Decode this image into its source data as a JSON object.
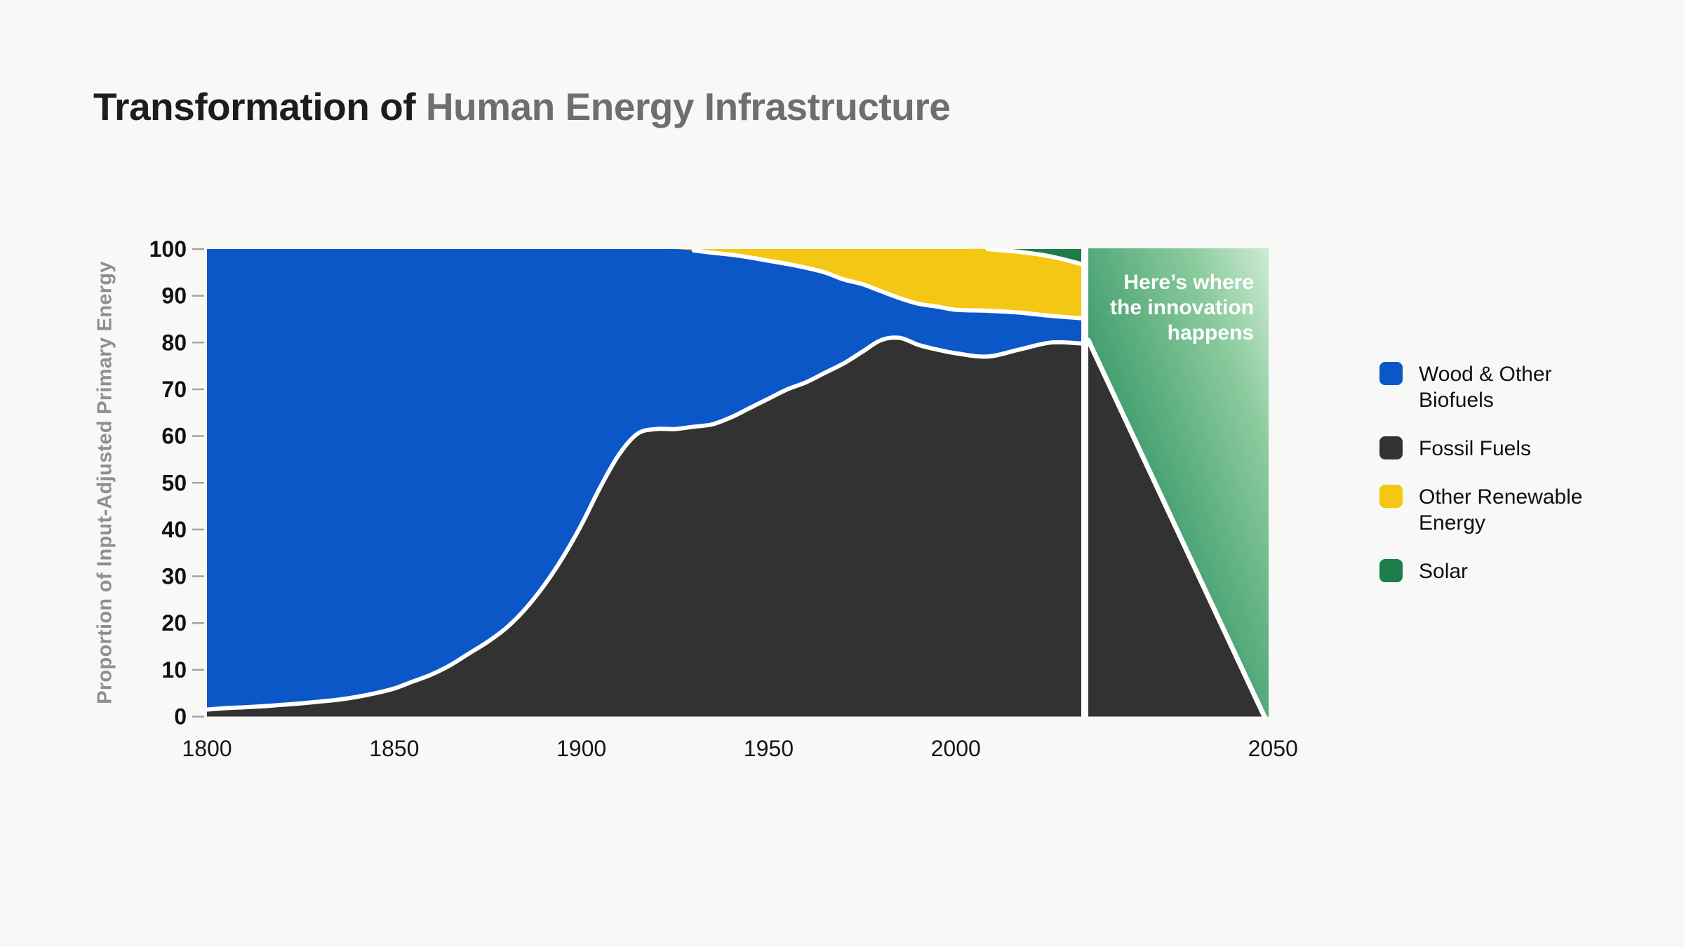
{
  "title": {
    "prefix": "Transformation of ",
    "highlight": "Human Energy Infrastructure"
  },
  "y_axis": {
    "label": "Proportion of Input-Adjusted Primary Energy"
  },
  "annotation": {
    "text": "Here’s where the innovation happens"
  },
  "legend": {
    "items": [
      {
        "label": "Wood & Other Biofuels",
        "color": "#0b57c8"
      },
      {
        "label": "Fossil Fuels",
        "color": "#323232"
      },
      {
        "label": "Other Renewable Energy",
        "color": "#f3c713"
      },
      {
        "label": "Solar",
        "color": "#1e7c4a"
      }
    ]
  },
  "colors": {
    "background": "#f8f8f6",
    "boundary_stroke": "#ffffff",
    "divider": "#ffffff",
    "title_dark": "#1d1d1d",
    "title_gray": "#6e6e6e",
    "future_gradient": [
      "#27875a",
      "#429e6e",
      "#8ccb9e",
      "#cdebd4"
    ],
    "future_gradient_offsets": [
      0,
      40,
      78,
      100
    ]
  },
  "chart_data": {
    "type": "area",
    "subtype": "stacked-100-percent",
    "title": "Transformation of Human Energy Infrastructure",
    "xlabel": "",
    "ylabel": "Proportion of Input-Adjusted Primary Energy",
    "ylim": [
      0,
      100
    ],
    "y_ticks": [
      0,
      10,
      20,
      30,
      40,
      50,
      60,
      70,
      80,
      90,
      100
    ],
    "x_ticks": [
      1800,
      1850,
      1900,
      1950,
      2000,
      2050
    ],
    "grid": false,
    "legend_position": "right",
    "x_axis_note": "segment 2000-2050 is drawn stretched ~1.7x vs 1800-2000; history ends ~2020 at a white divider",
    "x": [
      1800,
      1805,
      1810,
      1815,
      1820,
      1825,
      1830,
      1835,
      1840,
      1845,
      1850,
      1855,
      1860,
      1865,
      1870,
      1875,
      1880,
      1885,
      1890,
      1895,
      1900,
      1905,
      1910,
      1915,
      1920,
      1925,
      1930,
      1935,
      1940,
      1945,
      1950,
      1955,
      1960,
      1965,
      1970,
      1975,
      1980,
      1985,
      1990,
      1995,
      2000,
      2005,
      2010,
      2015,
      2020
    ],
    "series": [
      {
        "name": "Fossil Fuels",
        "color": "#323232",
        "values": [
          1.5,
          1.8,
          2.0,
          2.2,
          2.5,
          2.8,
          3.2,
          3.6,
          4.2,
          5.0,
          6.0,
          7.5,
          9.0,
          11.0,
          13.5,
          16.0,
          19.0,
          23.0,
          28.0,
          34.0,
          41.0,
          49.0,
          56.0,
          60.5,
          61.5,
          61.5,
          62.0,
          62.5,
          64.0,
          66.0,
          68.0,
          70.0,
          71.5,
          73.5,
          75.5,
          78.0,
          80.5,
          81.0,
          79.5,
          78.5,
          77.7,
          77.0,
          78.5,
          80.0,
          79.8
        ]
      },
      {
        "name": "Wood & Other Biofuels",
        "color": "#0b57c8",
        "values": [
          98.5,
          98.2,
          98.0,
          97.8,
          97.5,
          97.2,
          96.8,
          96.4,
          95.8,
          95.0,
          94.0,
          92.5,
          91.0,
          89.0,
          86.5,
          84.0,
          81.0,
          77.0,
          72.0,
          66.0,
          59.0,
          51.0,
          44.0,
          39.5,
          38.5,
          38.5,
          37.7,
          36.7,
          34.8,
          32.2,
          29.5,
          26.8,
          24.5,
          21.5,
          18.0,
          14.5,
          10.5,
          8.5,
          8.8,
          9.2,
          9.3,
          9.8,
          7.9,
          5.7,
          5.4
        ]
      },
      {
        "name": "Other Renewable Energy",
        "color": "#f3c713",
        "values": [
          0,
          0,
          0,
          0,
          0,
          0,
          0,
          0,
          0,
          0,
          0,
          0,
          0,
          0,
          0,
          0,
          0,
          0,
          0,
          0,
          0,
          0,
          0,
          0,
          0,
          0,
          0.3,
          0.8,
          1.2,
          1.8,
          2.5,
          3.2,
          4.0,
          5.0,
          6.5,
          7.5,
          9.0,
          10.5,
          11.7,
          12.3,
          13.0,
          13.2,
          13.0,
          12.7,
          11.6
        ]
      },
      {
        "name": "Solar",
        "color": "#1e7c4a",
        "values": [
          0,
          0,
          0,
          0,
          0,
          0,
          0,
          0,
          0,
          0,
          0,
          0,
          0,
          0,
          0,
          0,
          0,
          0,
          0,
          0,
          0,
          0,
          0,
          0,
          0,
          0,
          0,
          0,
          0,
          0,
          0,
          0,
          0,
          0,
          0,
          0,
          0,
          0,
          0,
          0,
          0,
          0,
          0.6,
          1.6,
          3.2
        ]
      }
    ],
    "projection": {
      "annotation": "Here’s where the innovation happens",
      "x_start": 2021,
      "x_end": 2050,
      "fossil_decline": [
        80.5,
        0
      ],
      "fill": "solar-green-gradient"
    }
  }
}
